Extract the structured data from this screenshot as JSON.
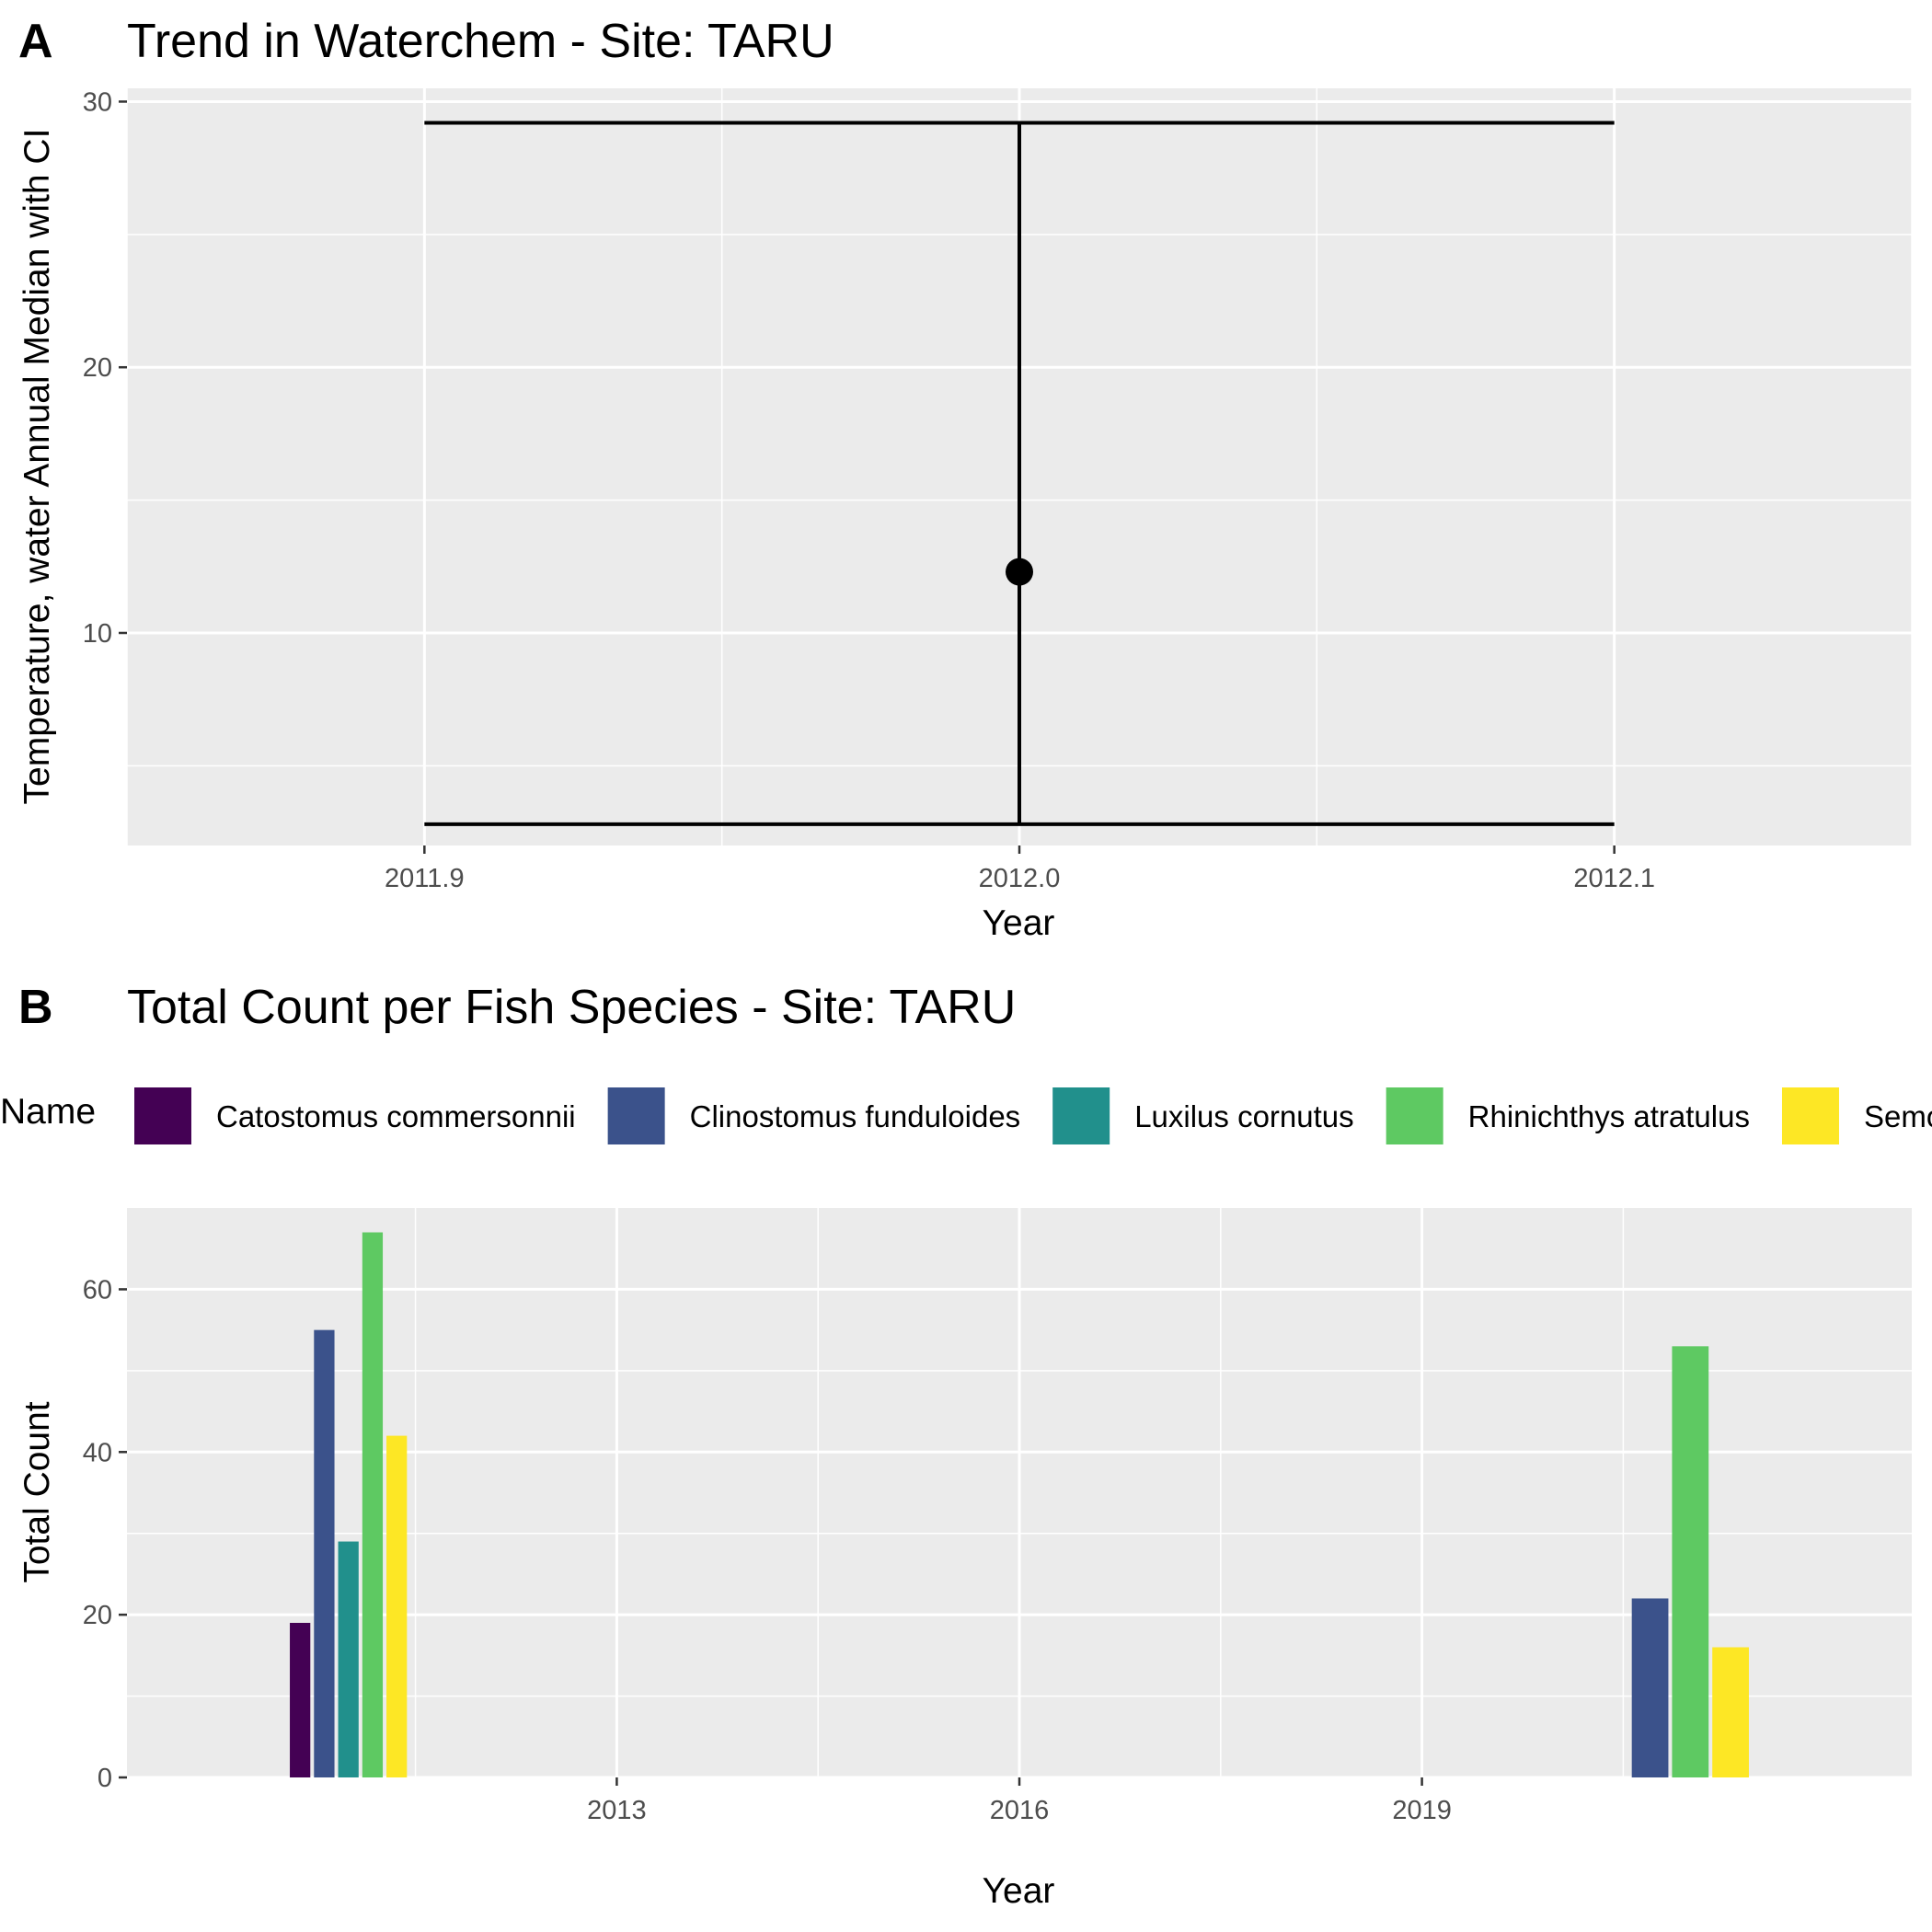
{
  "chart_data": [
    {
      "tag": "A",
      "type": "scatter",
      "title": "Trend in Waterchem - Site: TARU",
      "xlabel": "Year",
      "ylabel": "Temperature, water Annual Median with CI",
      "x_ticks": [
        "2011.9",
        "2012.0",
        "2012.1"
      ],
      "y_ticks": [
        "10",
        "20",
        "30"
      ],
      "xlim": [
        2011.85,
        2012.15
      ],
      "ylim": [
        2.0,
        30.5
      ],
      "grid": true,
      "points": [
        {
          "x": 2012.0,
          "y": 12.3,
          "ci_low": 2.8,
          "ci_high": 29.2,
          "errorbar_width": 0.2
        }
      ]
    },
    {
      "tag": "B",
      "type": "bar",
      "title": "Total Count per Fish Species - Site: TARU",
      "xlabel": "Year",
      "ylabel": "Total Count",
      "x_ticks": [
        "2013",
        "2016",
        "2019"
      ],
      "y_ticks": [
        "0",
        "20",
        "40",
        "60"
      ],
      "xlim": [
        2009.35,
        2022.65
      ],
      "ylim": [
        0,
        70
      ],
      "grid": true,
      "legend": {
        "title": "Name",
        "position": "top",
        "entries": [
          {
            "name": "Catostomus commersonnii",
            "color": "#440154"
          },
          {
            "name": "Clinostomus funduloides",
            "color": "#3b528b"
          },
          {
            "name": "Luxilus cornutus",
            "color": "#21908c"
          },
          {
            "name": "Rhinichthys atratulus",
            "color": "#5ec962"
          },
          {
            "name": "Semotilus atromaculatus",
            "color": "#fde725"
          }
        ]
      },
      "groups": [
        {
          "year": 2011,
          "values": {
            "Catostomus commersonnii": 19,
            "Clinostomus funduloides": 55,
            "Luxilus cornutus": 29,
            "Rhinichthys atratulus": 67,
            "Semotilus atromaculatus": 42
          }
        },
        {
          "year": 2021,
          "values": {
            "Clinostomus funduloides": 22,
            "Rhinichthys atratulus": 53,
            "Semotilus atromaculatus": 16
          }
        }
      ]
    }
  ]
}
